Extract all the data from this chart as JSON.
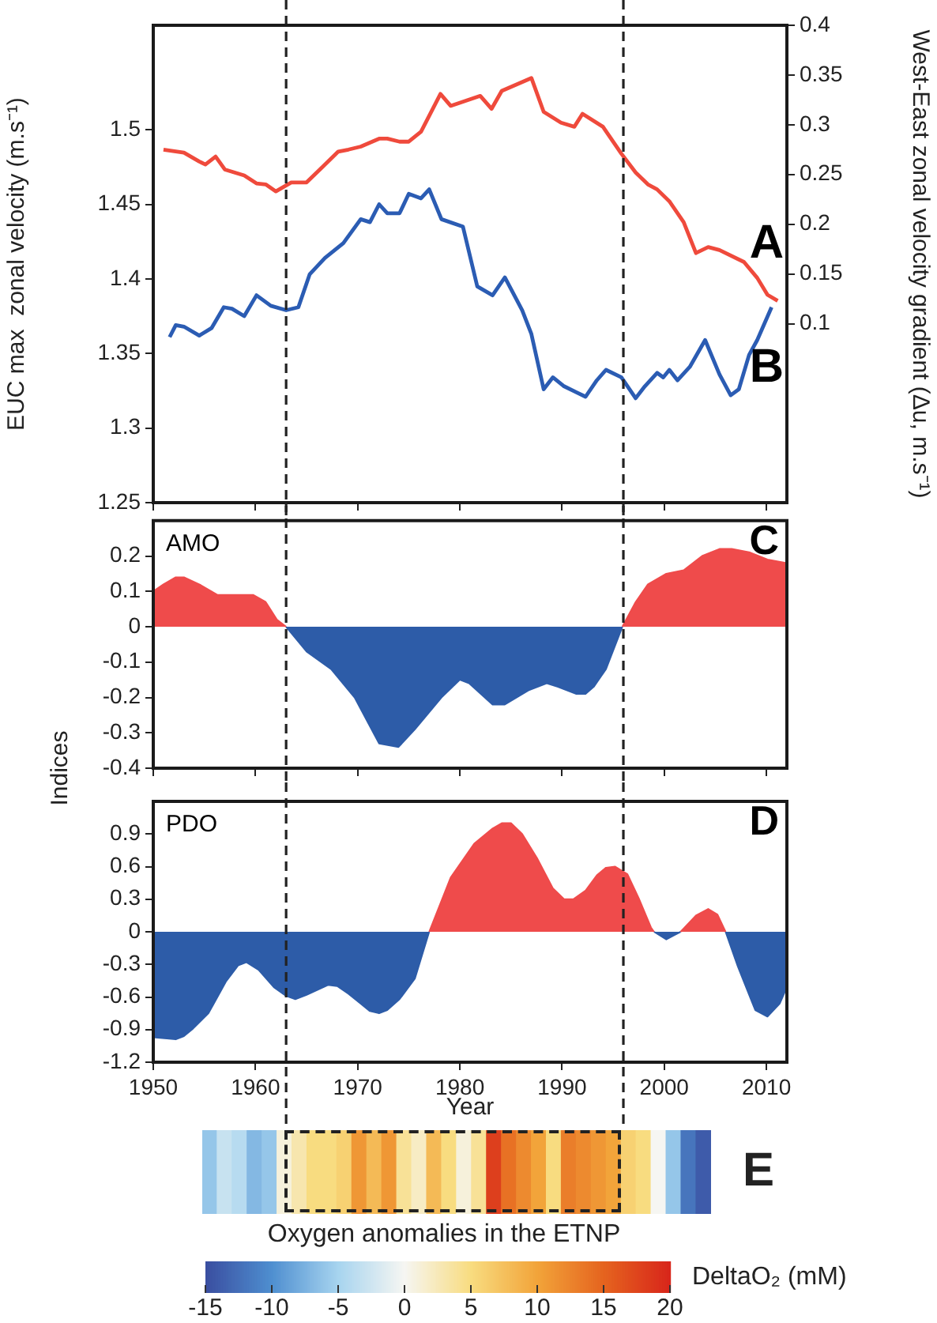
{
  "chart_data": [
    {
      "type": "line",
      "ylabel": "EUC max  zonal velocity (m.s⁻¹)",
      "y2label": "West-East zonal velocity gradient (Δu, m.s⁻¹)",
      "xlim": [
        1950,
        2012
      ],
      "xticks": [
        {
          "value": 1950,
          "label": null
        },
        {
          "value": 1960,
          "label": null
        },
        {
          "value": 1970,
          "label": null
        },
        {
          "value": 1980,
          "label": null
        },
        {
          "value": 1990,
          "label": null
        },
        {
          "value": 2000,
          "label": null
        },
        {
          "value": 2010,
          "label": null
        }
      ],
      "ylim": [
        1.25,
        1.57
      ],
      "yticks": [
        1.25,
        1.3,
        1.35,
        1.4,
        1.45,
        1.5
      ],
      "y2lim": [
        -0.08,
        0.4
      ],
      "y2ticks": [
        0.1,
        0.15,
        0.2,
        0.25,
        0.3,
        0.35,
        0.4
      ],
      "tick_labels": "y",
      "grid": false,
      "legend": false,
      "marker": "none",
      "line_style": "solid",
      "annotations": [
        "A",
        "B"
      ],
      "ref_lines": [
        {
          "axis": "x",
          "value": 1963,
          "line_style": "dashed"
        },
        {
          "axis": "x",
          "value": 1996,
          "line_style": "dashed"
        }
      ],
      "series": [
        {
          "color": "#ef4a3c",
          "axis": "y2",
          "x": [
            1951,
            1953,
            1954.5,
            1955.1,
            1956.1,
            1957,
            1958.9,
            1960.1,
            1961,
            1962,
            1963.5,
            1965,
            1966.5,
            1968.1,
            1969.1,
            1970.3,
            1972.1,
            1972.9,
            1974.1,
            1975,
            1976.2,
            1978.1,
            1979.1,
            1982,
            1983.1,
            1984.1,
            1987,
            1988.2,
            1989.9,
            1991.2,
            1992,
            1994,
            1995.8,
            1997.2,
            1998.4,
            1999.3,
            2000.5,
            2001.9,
            2003.1,
            2004.3,
            2005.4,
            2007.8,
            2009.1,
            2010.1,
            2011.1
          ],
          "values": [
            0.275,
            0.272,
            0.263,
            0.26,
            0.268,
            0.255,
            0.249,
            0.241,
            0.24,
            0.233,
            0.242,
            0.242,
            0.257,
            0.273,
            0.275,
            0.278,
            0.286,
            0.286,
            0.283,
            0.283,
            0.293,
            0.331,
            0.319,
            0.329,
            0.316,
            0.334,
            0.347,
            0.313,
            0.302,
            0.298,
            0.311,
            0.298,
            0.271,
            0.252,
            0.24,
            0.235,
            0.223,
            0.202,
            0.171,
            0.177,
            0.174,
            0.162,
            0.146,
            0.129,
            0.123
          ]
        },
        {
          "color": "#2b5cb3",
          "x": [
            1951.6,
            1952.2,
            1953,
            1954.5,
            1955.7,
            1956.9,
            1957.7,
            1958.9,
            1960.1,
            1961.5,
            1963,
            1964.2,
            1965.3,
            1966.8,
            1968.6,
            1970.3,
            1971.2,
            1972.1,
            1972.9,
            1974.1,
            1975,
            1976.2,
            1977,
            1978.2,
            1980.3,
            1981.7,
            1983.2,
            1984.4,
            1986.1,
            1987,
            1988.2,
            1989.1,
            1990.2,
            1991.4,
            1992.3,
            1993.4,
            1994.3,
            1995.8,
            1997.2,
            1998.1,
            1999.3,
            1999.9,
            2000.5,
            2001.3,
            2002.5,
            2004,
            2005.4,
            2006.5,
            2007.3,
            2008.3,
            2009.1,
            2010.5
          ],
          "values": [
            1.361,
            1.369,
            1.368,
            1.362,
            1.367,
            1.381,
            1.38,
            1.375,
            1.389,
            1.382,
            1.379,
            1.381,
            1.403,
            1.414,
            1.424,
            1.44,
            1.438,
            1.45,
            1.444,
            1.444,
            1.457,
            1.454,
            1.46,
            1.44,
            1.435,
            1.395,
            1.389,
            1.401,
            1.379,
            1.363,
            1.326,
            1.334,
            1.328,
            1.324,
            1.321,
            1.332,
            1.339,
            1.334,
            1.32,
            1.328,
            1.337,
            1.334,
            1.339,
            1.332,
            1.341,
            1.359,
            1.336,
            1.322,
            1.326,
            1.349,
            1.359,
            1.381
          ]
        }
      ]
    },
    {
      "type": "area",
      "ylabel": "Indices",
      "xlim": [
        1950,
        2012
      ],
      "xticks": [
        {
          "value": 1950,
          "label": null
        },
        {
          "value": 1960,
          "label": null
        },
        {
          "value": 1970,
          "label": null
        },
        {
          "value": 1980,
          "label": null
        },
        {
          "value": 1990,
          "label": null
        },
        {
          "value": 2000,
          "label": null
        },
        {
          "value": 2010,
          "label": null
        }
      ],
      "ylim": [
        -0.4,
        0.3
      ],
      "yticks": [
        -0.4,
        -0.3,
        -0.2,
        -0.1,
        0,
        0.1,
        0.2
      ],
      "tick_labels": "y",
      "grid": false,
      "legend": false,
      "marker": "none",
      "annotations": [
        "AMO",
        "C"
      ],
      "ref_lines": [
        {
          "axis": "x",
          "value": 1963,
          "line_style": "dashed"
        },
        {
          "axis": "x",
          "value": 1996,
          "line_style": "dashed"
        }
      ],
      "x": [
        1950,
        1951,
        1952.2,
        1953,
        1954.5,
        1956.3,
        1958,
        1959.8,
        1961,
        1962.1,
        1963,
        1965,
        1967.4,
        1969.7,
        1972.1,
        1974,
        1975.6,
        1978.2,
        1980,
        1980.9,
        1983.2,
        1984.4,
        1986.7,
        1988.5,
        1989.6,
        1991.4,
        1992.3,
        1993.1,
        1994.3,
        1995.9,
        1997.2,
        1998.4,
        2000.2,
        2001.9,
        2003.7,
        2005.4,
        2006.6,
        2008.4,
        2010.1,
        2012
      ],
      "series": [
        {
          "color": "#ef4b4b",
          "values": [
            0.1,
            0.12,
            0.14,
            0.14,
            0.12,
            0.09,
            0.09,
            0.09,
            0.07,
            0.02,
            0,
            null,
            null,
            null,
            null,
            null,
            null,
            null,
            null,
            null,
            null,
            null,
            null,
            null,
            null,
            null,
            null,
            null,
            null,
            0,
            0.07,
            0.12,
            0.15,
            0.16,
            0.2,
            0.22,
            0.22,
            0.21,
            0.19,
            0.18
          ]
        },
        {
          "color": "#2d5ca8",
          "values": [
            null,
            null,
            null,
            null,
            null,
            null,
            null,
            null,
            null,
            null,
            0,
            -0.07,
            -0.12,
            -0.2,
            -0.33,
            -0.34,
            -0.29,
            -0.2,
            -0.15,
            -0.16,
            -0.22,
            -0.22,
            -0.18,
            -0.16,
            -0.17,
            -0.19,
            -0.19,
            -0.17,
            -0.12,
            0,
            null,
            null,
            null,
            null,
            null,
            null,
            null,
            null,
            null,
            null
          ]
        }
      ]
    },
    {
      "type": "area",
      "xlabel": "Year",
      "xlim": [
        1950,
        2012
      ],
      "xticks": [
        1950,
        1960,
        1970,
        1980,
        1990,
        2000,
        2010
      ],
      "ylim": [
        -1.2,
        1.2
      ],
      "yticks": [
        -1.2,
        -0.9,
        -0.6,
        -0.3,
        0,
        0.3,
        0.6,
        0.9
      ],
      "grid": false,
      "legend": false,
      "marker": "none",
      "annotations": [
        "PDO",
        "D"
      ],
      "ref_lines": [
        {
          "axis": "x",
          "value": 1963,
          "line_style": "dashed"
        },
        {
          "axis": "x",
          "value": 1996,
          "line_style": "dashed"
        }
      ],
      "x": [
        1950,
        1952.2,
        1953,
        1953.9,
        1955.4,
        1957.1,
        1958.3,
        1959.1,
        1960.3,
        1961.8,
        1963,
        1963.9,
        1965,
        1967.1,
        1968,
        1969.1,
        1971.2,
        1972.1,
        1972.9,
        1974.1,
        1975.6,
        1977,
        1979.1,
        1981.4,
        1983.2,
        1984.1,
        1985,
        1986.1,
        1987.6,
        1989.1,
        1990.2,
        1991.1,
        1992.3,
        1993.4,
        1994.3,
        1995.2,
        1996.4,
        1997.5,
        1998.7,
        1999,
        2000.2,
        2001,
        2001.6,
        2003.1,
        2004.3,
        2005.2,
        2006,
        2007.2,
        2008.9,
        2010.1,
        2011.3,
        2012
      ],
      "series": [
        {
          "color": "#ef4b4b",
          "values": [
            null,
            null,
            null,
            null,
            null,
            null,
            null,
            null,
            null,
            null,
            null,
            null,
            null,
            null,
            null,
            null,
            null,
            null,
            null,
            null,
            null,
            0,
            0.5,
            0.81,
            0.95,
            1.0,
            1.0,
            0.9,
            0.67,
            0.4,
            0.3,
            0.3,
            0.38,
            0.52,
            0.59,
            0.6,
            0.53,
            0.31,
            0.04,
            0,
            null,
            null,
            0,
            0.15,
            0.21,
            0.16,
            0,
            null,
            null,
            null,
            null,
            null
          ]
        },
        {
          "color": "#2d5ca8",
          "values": [
            -0.97,
            -0.99,
            -0.96,
            -0.89,
            -0.75,
            -0.46,
            -0.31,
            -0.28,
            -0.35,
            -0.51,
            -0.59,
            -0.62,
            -0.58,
            -0.49,
            -0.5,
            -0.57,
            -0.73,
            -0.75,
            -0.72,
            -0.62,
            -0.43,
            0,
            null,
            null,
            null,
            null,
            null,
            null,
            null,
            null,
            null,
            null,
            null,
            null,
            null,
            null,
            null,
            null,
            null,
            0,
            -0.07,
            -0.03,
            0,
            null,
            null,
            null,
            0,
            -0.32,
            -0.72,
            -0.78,
            -0.66,
            -0.51
          ]
        }
      ]
    },
    {
      "type": "heatmap",
      "title": "Oxygen anomalies in the ETNP",
      "clabel": "DeltaO₂ (mM)",
      "annotations": [
        "E"
      ],
      "categories": [
        null,
        null,
        null,
        null,
        null,
        null,
        null,
        null,
        null,
        null,
        null,
        null,
        null,
        null,
        null,
        null,
        null,
        null,
        null,
        null,
        null,
        null,
        null,
        null,
        null,
        null,
        null,
        null,
        null,
        null,
        null,
        null,
        null,
        null
      ],
      "y_categories": [
        null
      ],
      "cells": [
        [
          -6,
          -3,
          -4,
          -7,
          -6,
          1,
          3,
          5,
          5,
          6,
          11,
          8,
          11,
          4,
          2,
          8,
          5,
          1,
          4,
          18,
          14,
          12,
          10,
          5,
          13,
          12,
          11,
          10,
          6,
          5,
          0,
          -6,
          -12,
          -14
        ]
      ],
      "clim": [
        -15,
        20
      ],
      "cticks": [
        -15,
        -10,
        -5,
        0,
        5,
        10,
        15,
        20
      ]
    }
  ]
}
